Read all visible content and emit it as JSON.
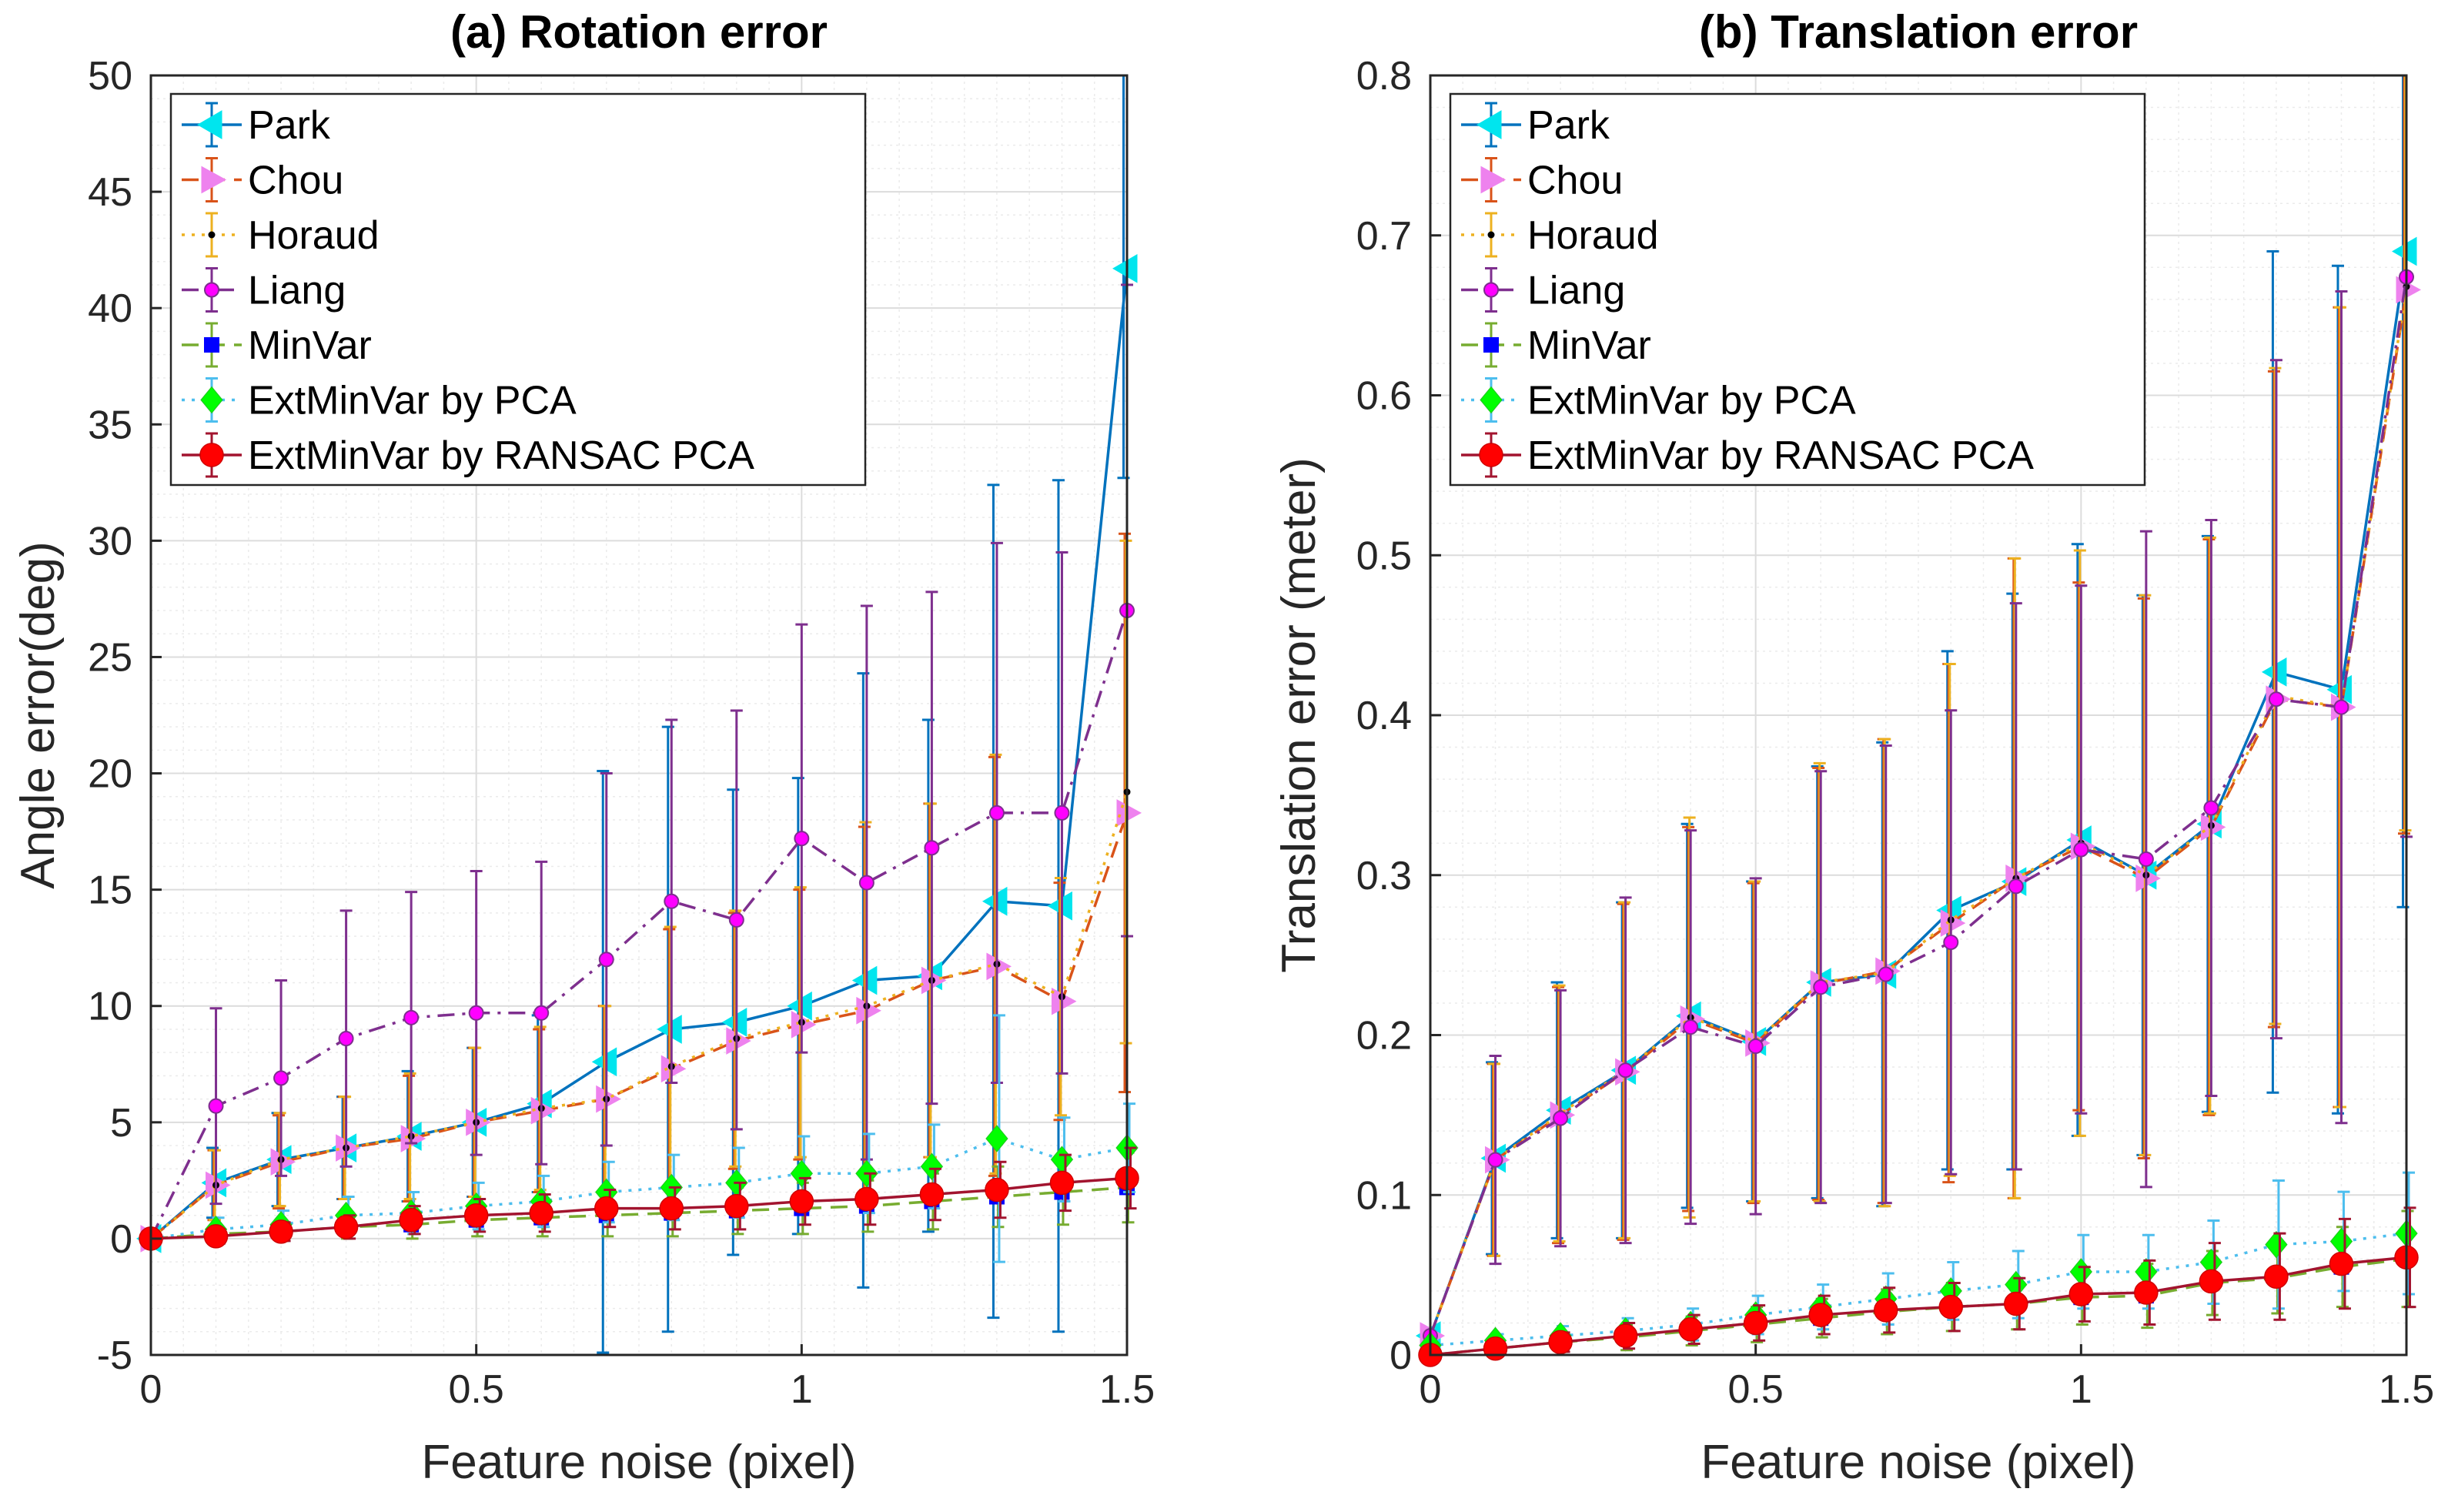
{
  "x_ticks": [
    "0",
    "0.5",
    "1",
    "1.5"
  ],
  "chart_data": [
    {
      "type": "line",
      "title": "(a) Rotation error",
      "xlabel": "Feature noise (pixel)",
      "ylabel": "Angle error(deg)",
      "xlim": [
        0,
        1.5
      ],
      "ylim": [
        -5,
        50
      ],
      "grid": true,
      "legend": "top-left",
      "y_ticks": [
        "-5",
        "0",
        "5",
        "10",
        "15",
        "20",
        "25",
        "30",
        "35",
        "40",
        "45",
        "50"
      ],
      "x": [
        0,
        0.1,
        0.2,
        0.3,
        0.4,
        0.5,
        0.6,
        0.7,
        0.8,
        0.9,
        1.0,
        1.1,
        1.2,
        1.3,
        1.4,
        1.5
      ],
      "series": [
        {
          "name": "Park",
          "color": "#0072BD",
          "dash": "solid",
          "marker": "tri-left",
          "markerColor": "#00E5EE",
          "values": [
            0,
            2.4,
            3.4,
            3.9,
            4.4,
            5.0,
            5.8,
            7.6,
            9.0,
            9.3,
            10.0,
            11.1,
            11.3,
            14.5,
            14.3,
            41.7
          ],
          "err": [
            0,
            1.5,
            2.0,
            2.2,
            2.8,
            3.2,
            3.8,
            12.5,
            13.0,
            10.0,
            9.8,
            13.2,
            11.0,
            17.9,
            18.3,
            9.0
          ]
        },
        {
          "name": "Chou",
          "color": "#D95319",
          "dash": "dash",
          "marker": "tri-right",
          "markerColor": "#EE82EE",
          "values": [
            0,
            2.3,
            3.3,
            3.9,
            4.3,
            5.0,
            5.5,
            6.0,
            7.3,
            8.5,
            9.2,
            9.8,
            11.1,
            11.7,
            10.2,
            18.3
          ],
          "err": [
            0,
            1.5,
            2.0,
            2.2,
            2.7,
            3.2,
            3.5,
            4.0,
            6.0,
            5.5,
            5.8,
            7.9,
            7.6,
            9.0,
            5.1,
            12.0
          ]
        },
        {
          "name": "Horaud",
          "color": "#EDB120",
          "dash": "dot",
          "marker": "dot",
          "markerColor": "#000000",
          "values": [
            0,
            2.3,
            3.4,
            3.9,
            4.4,
            5.0,
            5.6,
            6.0,
            7.4,
            8.6,
            9.3,
            10.0,
            11.1,
            11.8,
            10.4,
            19.2
          ],
          "err": [
            0,
            1.5,
            2.0,
            2.2,
            2.7,
            3.2,
            3.5,
            4.0,
            6.0,
            5.5,
            5.8,
            7.9,
            7.6,
            9.0,
            5.1,
            10.8
          ]
        },
        {
          "name": "Liang",
          "color": "#7E2F8E",
          "dash": "dashdot",
          "marker": "circle",
          "markerColor": "#FF00FF",
          "values": [
            0,
            5.7,
            6.9,
            8.6,
            9.5,
            9.7,
            9.7,
            12.0,
            14.5,
            13.7,
            17.2,
            15.3,
            16.8,
            18.3,
            18.3,
            27.0
          ],
          "err": [
            0,
            4.2,
            4.2,
            5.5,
            5.4,
            6.1,
            6.5,
            8.0,
            7.8,
            9.0,
            9.2,
            11.9,
            11.0,
            11.6,
            11.2,
            14.0
          ]
        },
        {
          "name": "MinVar",
          "color": "#77AC30",
          "dash": "dash",
          "marker": "square",
          "markerColor": "#0000FF",
          "values": [
            0,
            0.2,
            0.3,
            0.5,
            0.6,
            0.8,
            0.9,
            1.0,
            1.1,
            1.2,
            1.3,
            1.4,
            1.6,
            1.8,
            2.0,
            2.2
          ],
          "err": [
            0,
            0.3,
            0.4,
            0.5,
            0.6,
            0.7,
            0.8,
            0.9,
            1.0,
            1.0,
            1.1,
            1.1,
            1.2,
            1.3,
            1.4,
            1.5
          ]
        },
        {
          "name": "ExtMinVar by PCA",
          "color": "#4DBEEE",
          "dash": "dot",
          "marker": "diamond",
          "markerColor": "#00FF00",
          "values": [
            0,
            0.4,
            0.6,
            1.0,
            1.1,
            1.4,
            1.6,
            2.0,
            2.2,
            2.4,
            2.8,
            2.8,
            3.1,
            4.3,
            3.4,
            3.9
          ],
          "err": [
            0,
            0.5,
            0.6,
            0.8,
            0.9,
            1.0,
            1.1,
            1.3,
            1.4,
            1.5,
            1.6,
            1.7,
            1.8,
            5.3,
            1.8,
            1.9
          ]
        },
        {
          "name": "ExtMinVar by RANSAC PCA",
          "color": "#A2142F",
          "dash": "solid",
          "marker": "bigcircle",
          "markerColor": "#FF0000",
          "values": [
            0,
            0.1,
            0.3,
            0.5,
            0.8,
            1.0,
            1.1,
            1.3,
            1.3,
            1.4,
            1.6,
            1.7,
            1.9,
            2.1,
            2.4,
            2.6
          ],
          "err": [
            0,
            0.3,
            0.4,
            0.5,
            0.6,
            0.7,
            0.8,
            0.8,
            0.9,
            1.0,
            1.0,
            1.1,
            1.1,
            1.2,
            1.2,
            1.3
          ]
        }
      ]
    },
    {
      "type": "line",
      "title": "(b) Translation error",
      "xlabel": "Feature noise (pixel)",
      "ylabel": "Translation error (meter)",
      "xlim": [
        0,
        1.5
      ],
      "ylim": [
        0,
        0.8
      ],
      "grid": true,
      "legend": "top-left",
      "y_ticks": [
        "0",
        "0.1",
        "0.2",
        "0.3",
        "0.4",
        "0.5",
        "0.6",
        "0.7",
        "0.8"
      ],
      "x": [
        0,
        0.1,
        0.2,
        0.3,
        0.4,
        0.5,
        0.6,
        0.7,
        0.8,
        0.9,
        1.0,
        1.1,
        1.2,
        1.3,
        1.4,
        1.5
      ],
      "series": [
        {
          "name": "Park",
          "color": "#0072BD",
          "dash": "solid",
          "marker": "tri-left",
          "markerColor": "#00E5EE",
          "values": [
            0.012,
            0.123,
            0.153,
            0.178,
            0.212,
            0.196,
            0.233,
            0.238,
            0.278,
            0.296,
            0.322,
            0.3,
            0.332,
            0.427,
            0.416,
            0.69
          ],
          "err": [
            0,
            0.06,
            0.08,
            0.105,
            0.12,
            0.1,
            0.135,
            0.145,
            0.162,
            0.18,
            0.185,
            0.175,
            0.18,
            0.263,
            0.265,
            0.41
          ]
        },
        {
          "name": "Chou",
          "color": "#D95319",
          "dash": "dash",
          "marker": "tri-right",
          "markerColor": "#EE82EE",
          "values": [
            0.012,
            0.122,
            0.15,
            0.177,
            0.21,
            0.195,
            0.232,
            0.24,
            0.27,
            0.298,
            0.318,
            0.298,
            0.33,
            0.41,
            0.405,
            0.666
          ],
          "err": [
            0,
            0.06,
            0.08,
            0.105,
            0.12,
            0.1,
            0.135,
            0.145,
            0.162,
            0.2,
            0.165,
            0.175,
            0.18,
            0.205,
            0.25,
            0.34
          ]
        },
        {
          "name": "Horaud",
          "color": "#EDB120",
          "dash": "dot",
          "marker": "dot",
          "markerColor": "#000000",
          "values": [
            0.012,
            0.122,
            0.151,
            0.178,
            0.211,
            0.196,
            0.233,
            0.239,
            0.272,
            0.298,
            0.32,
            0.3,
            0.331,
            0.412,
            0.405,
            0.668
          ],
          "err": [
            0,
            0.06,
            0.08,
            0.105,
            0.125,
            0.1,
            0.137,
            0.146,
            0.16,
            0.2,
            0.183,
            0.175,
            0.18,
            0.205,
            0.25,
            0.34
          ]
        },
        {
          "name": "Liang",
          "color": "#7E2F8E",
          "dash": "dashdot",
          "marker": "circle",
          "markerColor": "#FF00FF",
          "values": [
            0.012,
            0.122,
            0.148,
            0.178,
            0.205,
            0.193,
            0.23,
            0.238,
            0.258,
            0.293,
            0.316,
            0.31,
            0.342,
            0.41,
            0.405,
            0.674
          ],
          "err": [
            0,
            0.065,
            0.08,
            0.108,
            0.123,
            0.105,
            0.135,
            0.143,
            0.145,
            0.177,
            0.165,
            0.205,
            0.18,
            0.212,
            0.26,
            0.35
          ]
        },
        {
          "name": "MinVar",
          "color": "#77AC30",
          "dash": "dash",
          "marker": "square",
          "markerColor": "#0000FF",
          "values": [
            0.0,
            0.004,
            0.008,
            0.011,
            0.015,
            0.019,
            0.023,
            0.027,
            0.03,
            0.032,
            0.036,
            0.037,
            0.045,
            0.048,
            0.055,
            0.06
          ],
          "err": [
            0,
            0.004,
            0.006,
            0.008,
            0.009,
            0.011,
            0.012,
            0.014,
            0.015,
            0.016,
            0.017,
            0.02,
            0.02,
            0.022,
            0.025,
            0.03
          ]
        },
        {
          "name": "ExtMinVar by PCA",
          "color": "#4DBEEE",
          "dash": "dot",
          "marker": "diamond",
          "markerColor": "#00FF00",
          "values": [
            0.006,
            0.009,
            0.012,
            0.015,
            0.019,
            0.025,
            0.03,
            0.035,
            0.04,
            0.044,
            0.052,
            0.052,
            0.058,
            0.069,
            0.071,
            0.076
          ],
          "err": [
            0,
            0.004,
            0.006,
            0.008,
            0.01,
            0.012,
            0.014,
            0.016,
            0.018,
            0.021,
            0.023,
            0.023,
            0.026,
            0.04,
            0.031,
            0.038
          ]
        },
        {
          "name": "ExtMinVar by RANSAC PCA",
          "color": "#A2142F",
          "dash": "solid",
          "marker": "bigcircle",
          "markerColor": "#FF0000",
          "values": [
            0.0,
            0.004,
            0.008,
            0.012,
            0.016,
            0.02,
            0.025,
            0.028,
            0.03,
            0.032,
            0.038,
            0.039,
            0.046,
            0.049,
            0.057,
            0.061
          ],
          "err": [
            0,
            0.004,
            0.006,
            0.008,
            0.009,
            0.011,
            0.012,
            0.014,
            0.015,
            0.016,
            0.017,
            0.02,
            0.024,
            0.027,
            0.028,
            0.031
          ]
        }
      ]
    }
  ]
}
